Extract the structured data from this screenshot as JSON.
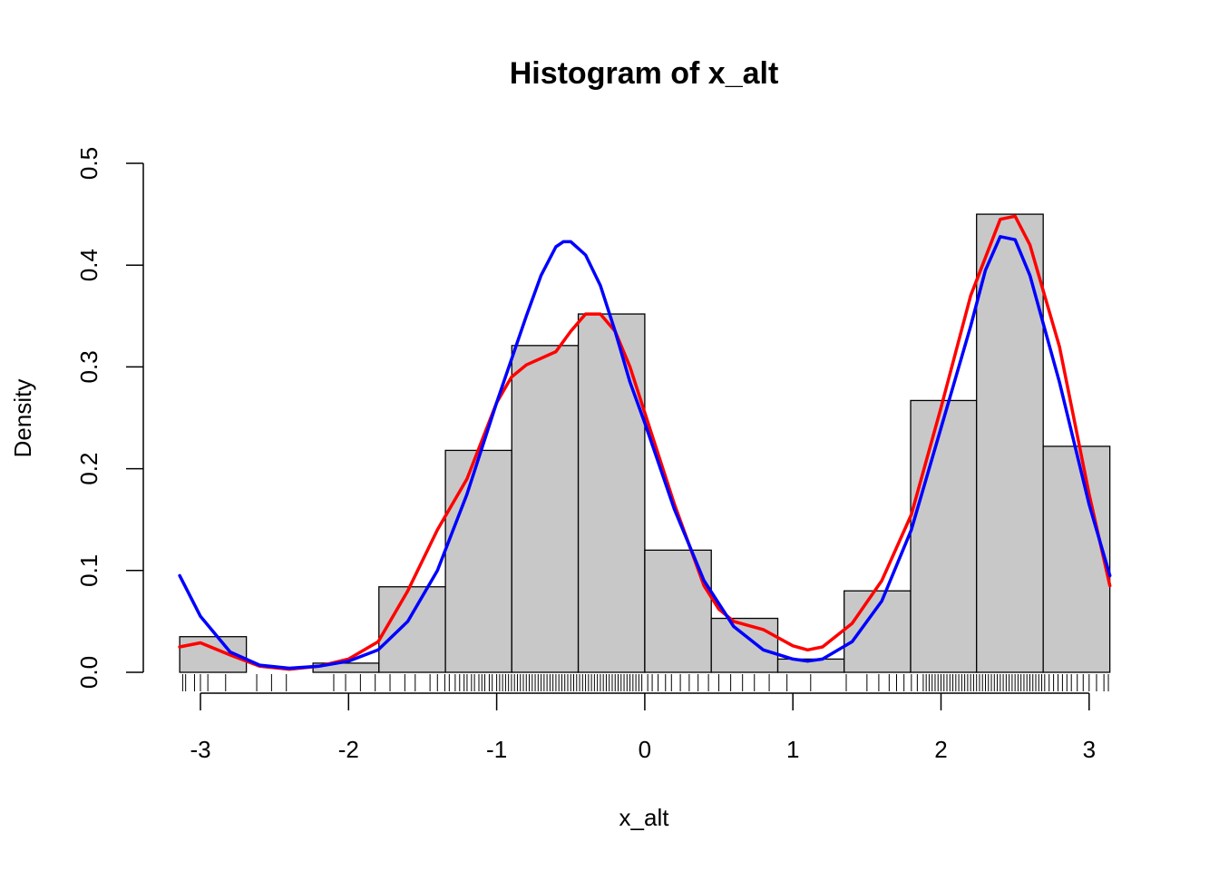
{
  "chart_data": {
    "type": "bar",
    "title": "Histogram of x_alt",
    "xlabel": "x_alt",
    "ylabel": "Density",
    "xlim": [
      -3.14,
      3.14
    ],
    "ylim": [
      0,
      0.5
    ],
    "x_ticks": [
      "-3",
      "-2",
      "-1",
      "0",
      "1",
      "2",
      "3"
    ],
    "x_tick_values": [
      -3,
      -2,
      -1,
      0,
      1,
      2,
      3
    ],
    "y_ticks": [
      "0.0",
      "0.1",
      "0.2",
      "0.3",
      "0.4",
      "0.5"
    ],
    "y_tick_values": [
      0,
      0.1,
      0.2,
      0.3,
      0.4,
      0.5
    ],
    "bins": [
      {
        "from": -3.14,
        "to": -2.69,
        "density": 0.035
      },
      {
        "from": -2.69,
        "to": -2.24,
        "density": 0.0
      },
      {
        "from": -2.24,
        "to": -1.795,
        "density": 0.009
      },
      {
        "from": -1.795,
        "to": -1.346,
        "density": 0.084
      },
      {
        "from": -1.346,
        "to": -0.898,
        "density": 0.218
      },
      {
        "from": -0.898,
        "to": -0.449,
        "density": 0.321
      },
      {
        "from": -0.449,
        "to": 0.0,
        "density": 0.352
      },
      {
        "from": 0.0,
        "to": 0.449,
        "density": 0.12
      },
      {
        "from": 0.449,
        "to": 0.898,
        "density": 0.053
      },
      {
        "from": 0.898,
        "to": 1.346,
        "density": 0.013
      },
      {
        "from": 1.346,
        "to": 1.795,
        "density": 0.08
      },
      {
        "from": 1.795,
        "to": 2.24,
        "density": 0.267
      },
      {
        "from": 2.24,
        "to": 2.69,
        "density": 0.45
      },
      {
        "from": 2.69,
        "to": 3.14,
        "density": 0.222
      }
    ],
    "bar_fill": "#c8c8c8",
    "series": [
      {
        "color": "#ff0000",
        "x": [
          -3.14,
          -3.0,
          -2.8,
          -2.6,
          -2.4,
          -2.2,
          -2.0,
          -1.8,
          -1.6,
          -1.4,
          -1.2,
          -1.0,
          -0.9,
          -0.8,
          -0.6,
          -0.5,
          -0.4,
          -0.3,
          -0.2,
          -0.1,
          0.0,
          0.2,
          0.4,
          0.5,
          0.6,
          0.8,
          1.0,
          1.1,
          1.2,
          1.4,
          1.6,
          1.8,
          2.0,
          2.2,
          2.4,
          2.5,
          2.6,
          2.8,
          3.0,
          3.14
        ],
        "y": [
          0.025,
          0.029,
          0.017,
          0.006,
          0.003,
          0.006,
          0.013,
          0.03,
          0.08,
          0.14,
          0.19,
          0.265,
          0.29,
          0.302,
          0.315,
          0.335,
          0.352,
          0.352,
          0.335,
          0.3,
          0.255,
          0.165,
          0.085,
          0.062,
          0.05,
          0.042,
          0.026,
          0.022,
          0.025,
          0.048,
          0.09,
          0.155,
          0.26,
          0.37,
          0.445,
          0.448,
          0.42,
          0.32,
          0.175,
          0.085
        ]
      },
      {
        "color": "#0000ff",
        "x": [
          -3.14,
          -3.0,
          -2.8,
          -2.6,
          -2.4,
          -2.2,
          -2.0,
          -1.8,
          -1.6,
          -1.4,
          -1.2,
          -1.0,
          -0.8,
          -0.7,
          -0.6,
          -0.55,
          -0.5,
          -0.4,
          -0.3,
          -0.2,
          -0.1,
          0.0,
          0.2,
          0.4,
          0.6,
          0.8,
          1.0,
          1.1,
          1.2,
          1.4,
          1.6,
          1.8,
          2.0,
          2.2,
          2.3,
          2.4,
          2.5,
          2.6,
          2.8,
          3.0,
          3.14
        ],
        "y": [
          0.095,
          0.055,
          0.02,
          0.007,
          0.004,
          0.006,
          0.011,
          0.022,
          0.05,
          0.1,
          0.175,
          0.265,
          0.35,
          0.39,
          0.418,
          0.423,
          0.423,
          0.41,
          0.38,
          0.335,
          0.285,
          0.245,
          0.16,
          0.09,
          0.045,
          0.022,
          0.013,
          0.011,
          0.013,
          0.03,
          0.07,
          0.14,
          0.24,
          0.34,
          0.395,
          0.428,
          0.425,
          0.39,
          0.285,
          0.165,
          0.095
        ]
      }
    ],
    "rug": [
      -3.12,
      -3.1,
      -3.04,
      -3.0,
      -2.95,
      -2.83,
      -2.62,
      -2.52,
      -2.42,
      -2.1,
      -2.02,
      -1.92,
      -1.82,
      -1.72,
      -1.62,
      -1.55,
      -1.45,
      -1.4,
      -1.35,
      -1.32,
      -1.28,
      -1.25,
      -1.22,
      -1.2,
      -1.17,
      -1.15,
      -1.12,
      -1.1,
      -1.08,
      -1.05,
      -1.03,
      -1.0,
      -0.98,
      -0.96,
      -0.94,
      -0.92,
      -0.9,
      -0.88,
      -0.86,
      -0.84,
      -0.82,
      -0.8,
      -0.78,
      -0.76,
      -0.74,
      -0.72,
      -0.7,
      -0.68,
      -0.66,
      -0.64,
      -0.62,
      -0.6,
      -0.58,
      -0.56,
      -0.54,
      -0.52,
      -0.5,
      -0.48,
      -0.46,
      -0.44,
      -0.42,
      -0.4,
      -0.38,
      -0.36,
      -0.34,
      -0.32,
      -0.3,
      -0.28,
      -0.26,
      -0.24,
      -0.22,
      -0.2,
      -0.18,
      -0.16,
      -0.14,
      -0.12,
      -0.1,
      -0.08,
      -0.06,
      -0.04,
      -0.02,
      0.02,
      0.05,
      0.09,
      0.14,
      0.18,
      0.24,
      0.3,
      0.36,
      0.43,
      0.5,
      0.58,
      0.66,
      0.74,
      0.84,
      0.96,
      1.12,
      1.36,
      1.5,
      1.58,
      1.65,
      1.7,
      1.75,
      1.8,
      1.84,
      1.88,
      1.9,
      1.92,
      1.94,
      1.96,
      1.98,
      2.0,
      2.02,
      2.04,
      2.06,
      2.08,
      2.1,
      2.12,
      2.14,
      2.16,
      2.18,
      2.2,
      2.22,
      2.24,
      2.26,
      2.28,
      2.3,
      2.32,
      2.34,
      2.36,
      2.38,
      2.4,
      2.42,
      2.44,
      2.46,
      2.48,
      2.5,
      2.52,
      2.54,
      2.56,
      2.58,
      2.6,
      2.62,
      2.64,
      2.66,
      2.68,
      2.7,
      2.73,
      2.76,
      2.79,
      2.82,
      2.85,
      2.88,
      2.92,
      2.96,
      3.0,
      3.05,
      3.1,
      3.13
    ],
    "grid": false,
    "legend": "none"
  }
}
